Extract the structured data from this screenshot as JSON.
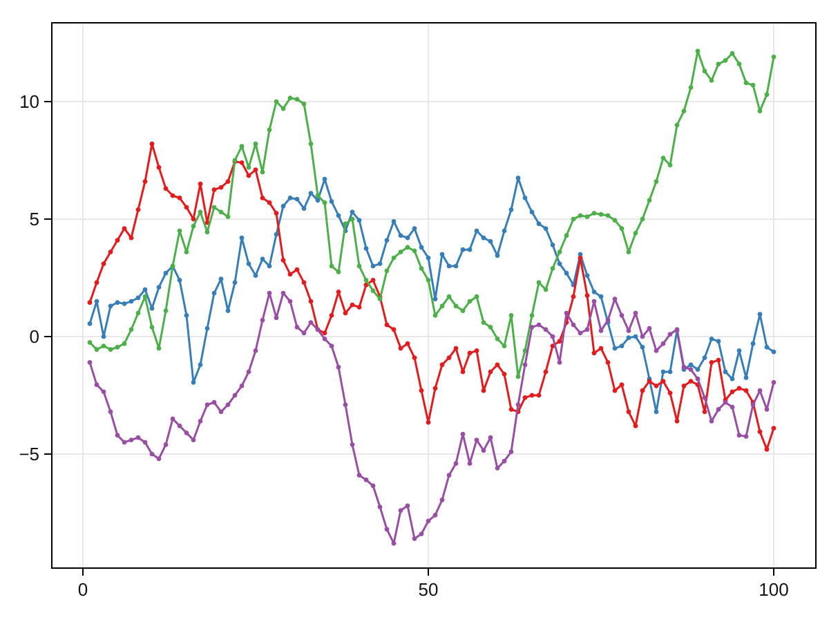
{
  "chart_data": {
    "type": "line",
    "title": "",
    "xlabel": "",
    "ylabel": "",
    "grid": true,
    "legend_position": "none",
    "marker": "circle",
    "background": "#ffffff",
    "grid_color": "#e0e0e0",
    "frame_color": "#000000",
    "tick_label_color": "#141414",
    "xlim": [
      -4.5,
      106.1
    ],
    "ylim": [
      -9.85,
      13.35
    ],
    "x_ticks": [
      {
        "value": 0,
        "label": "0"
      },
      {
        "value": 50,
        "label": "50"
      },
      {
        "value": 100,
        "label": "100"
      }
    ],
    "y_ticks": [
      {
        "value": 10,
        "label": "10"
      },
      {
        "value": 5,
        "label": "5"
      },
      {
        "value": 0,
        "label": "0"
      },
      {
        "value": -5,
        "label": "−5"
      }
    ],
    "x_start": 1,
    "x_step": 1,
    "n_points": 100,
    "series": [
      {
        "name": "series-1-blue",
        "color": "#377eb8",
        "values": [
          0.55,
          1.5,
          0.0,
          1.3,
          1.45,
          1.4,
          1.5,
          1.65,
          2.0,
          1.2,
          2.1,
          2.7,
          3.0,
          2.4,
          0.9,
          -1.95,
          -1.2,
          0.35,
          1.85,
          2.45,
          1.1,
          2.3,
          4.2,
          3.1,
          2.6,
          3.3,
          3.0,
          4.35,
          5.55,
          5.9,
          5.85,
          5.45,
          6.1,
          5.8,
          6.7,
          5.75,
          5.15,
          4.5,
          5.3,
          4.95,
          3.75,
          3.0,
          3.1,
          4.1,
          4.9,
          4.3,
          4.2,
          4.6,
          3.8,
          3.35,
          1.6,
          3.5,
          3.0,
          3.0,
          3.7,
          3.7,
          4.5,
          4.2,
          4.05,
          3.45,
          4.5,
          5.4,
          6.75,
          5.9,
          5.3,
          4.8,
          4.6,
          3.9,
          3.1,
          2.7,
          2.2,
          3.5,
          2.6,
          1.9,
          1.7,
          0.6,
          -0.5,
          -0.4,
          -0.05,
          0.0,
          -0.45,
          -1.8,
          -3.2,
          -1.5,
          -1.5,
          0.25,
          -1.4,
          -1.2,
          -1.4,
          -0.9,
          -0.1,
          -0.2,
          -1.5,
          -1.8,
          -0.6,
          -1.75,
          -0.3,
          0.95,
          -0.45,
          -0.65
        ]
      },
      {
        "name": "series-2-red",
        "color": "#e41a1c",
        "values": [
          1.45,
          2.3,
          3.1,
          3.6,
          4.1,
          4.6,
          4.2,
          5.4,
          6.6,
          8.2,
          7.2,
          6.3,
          6.0,
          5.9,
          5.5,
          5.0,
          6.5,
          4.85,
          6.25,
          6.35,
          6.6,
          7.45,
          7.4,
          6.85,
          7.1,
          5.9,
          5.7,
          5.25,
          3.25,
          2.65,
          2.85,
          2.3,
          1.5,
          0.3,
          0.15,
          0.9,
          1.9,
          1.0,
          1.35,
          1.25,
          2.2,
          2.4,
          1.7,
          0.5,
          0.3,
          -0.5,
          -0.3,
          -0.9,
          -2.3,
          -3.65,
          -2.2,
          -1.2,
          -0.9,
          -0.5,
          -1.5,
          -0.7,
          -0.6,
          -2.3,
          -1.5,
          -1.2,
          -1.6,
          -3.1,
          -3.2,
          -2.6,
          -2.5,
          -2.5,
          -1.5,
          -0.4,
          -0.2,
          0.6,
          1.7,
          3.35,
          1.75,
          -0.7,
          -0.5,
          -1.1,
          -2.3,
          -2.05,
          -3.2,
          -3.8,
          -2.3,
          -1.9,
          -2.1,
          -1.9,
          -2.4,
          -3.6,
          -2.1,
          -1.9,
          -2.05,
          -3.2,
          -1.1,
          -1.0,
          -2.7,
          -2.35,
          -2.2,
          -2.3,
          -2.8,
          -4.05,
          -4.8,
          -3.9
        ]
      },
      {
        "name": "series-3-green",
        "color": "#4daf4a",
        "values": [
          -0.25,
          -0.55,
          -0.4,
          -0.55,
          -0.45,
          -0.3,
          0.3,
          1.0,
          1.7,
          0.4,
          -0.5,
          1.1,
          3.0,
          4.5,
          3.6,
          4.7,
          5.3,
          4.45,
          5.5,
          5.3,
          5.1,
          7.5,
          8.1,
          7.2,
          8.2,
          7.0,
          8.8,
          10.0,
          9.7,
          10.15,
          10.1,
          9.9,
          8.2,
          6.0,
          5.7,
          3.0,
          2.75,
          4.8,
          5.0,
          3.0,
          2.4,
          1.95,
          1.6,
          2.8,
          3.35,
          3.6,
          3.8,
          3.65,
          2.9,
          2.4,
          0.9,
          1.3,
          1.7,
          1.3,
          1.1,
          1.5,
          1.7,
          0.6,
          0.4,
          -0.1,
          -0.4,
          0.9,
          -1.7,
          -0.6,
          0.9,
          2.3,
          2.0,
          2.9,
          3.6,
          4.3,
          5.0,
          5.15,
          5.1,
          5.25,
          5.2,
          5.15,
          4.95,
          4.6,
          3.6,
          4.4,
          5.0,
          5.8,
          6.6,
          7.6,
          7.3,
          9.0,
          9.6,
          10.6,
          12.15,
          11.3,
          10.9,
          11.6,
          11.75,
          12.05,
          11.6,
          10.8,
          10.7,
          9.6,
          10.3,
          11.9
        ]
      },
      {
        "name": "series-4-purple",
        "color": "#984ea3",
        "values": [
          -1.1,
          -2.05,
          -2.35,
          -3.2,
          -4.2,
          -4.5,
          -4.4,
          -4.3,
          -4.5,
          -5.0,
          -5.2,
          -4.6,
          -3.5,
          -3.8,
          -4.1,
          -4.4,
          -3.6,
          -2.9,
          -2.8,
          -3.2,
          -2.9,
          -2.5,
          -2.1,
          -1.5,
          -0.6,
          0.7,
          1.85,
          0.8,
          1.85,
          1.5,
          0.4,
          0.15,
          0.6,
          0.3,
          -0.1,
          -0.4,
          -1.3,
          -2.9,
          -4.6,
          -5.9,
          -6.1,
          -6.35,
          -7.25,
          -8.2,
          -8.8,
          -7.4,
          -7.2,
          -8.6,
          -8.4,
          -7.85,
          -7.6,
          -6.95,
          -5.9,
          -5.4,
          -4.15,
          -5.4,
          -4.4,
          -4.85,
          -4.3,
          -5.6,
          -5.3,
          -4.9,
          -2.9,
          -1.2,
          0.4,
          0.5,
          0.3,
          0.0,
          -1.1,
          1.0,
          0.5,
          0.15,
          0.3,
          1.5,
          0.25,
          0.7,
          1.6,
          0.9,
          0.25,
          1.0,
          0.0,
          0.35,
          -0.6,
          -0.3,
          0.1,
          0.3,
          -1.3,
          -1.4,
          -1.8,
          -2.6,
          -3.6,
          -3.1,
          -2.8,
          -3.0,
          -4.2,
          -4.25,
          -2.9,
          -2.3,
          -3.1,
          -1.95
        ]
      }
    ]
  }
}
